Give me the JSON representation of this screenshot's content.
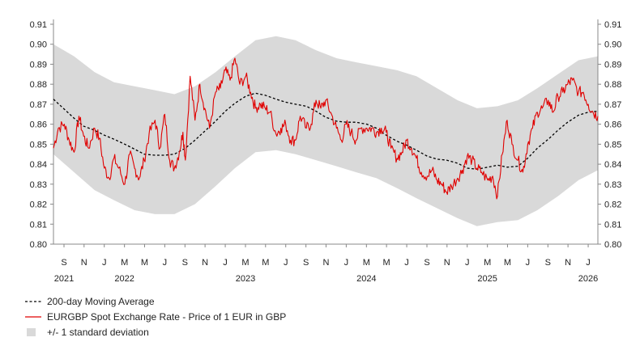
{
  "chart_data": {
    "type": "line",
    "title": "",
    "xlabel": "",
    "ylabel": "",
    "ylim": [
      0.8,
      0.91
    ],
    "y_ticks": [
      0.8,
      0.81,
      0.82,
      0.83,
      0.84,
      0.85,
      0.86,
      0.87,
      0.88,
      0.89,
      0.9,
      0.91
    ],
    "y_tick_labels": [
      "0.80",
      "0.81",
      "0.82",
      "0.83",
      "0.84",
      "0.85",
      "0.86",
      "0.87",
      "0.88",
      "0.89",
      "0.90",
      "0.91"
    ],
    "x_range": [
      2021.58,
      2026.08
    ],
    "month_ticks": [
      {
        "label": "S",
        "x": 2021.667
      },
      {
        "label": "N",
        "x": 2021.833
      },
      {
        "label": "J",
        "x": 2022.0
      },
      {
        "label": "M",
        "x": 2022.167
      },
      {
        "label": "M",
        "x": 2022.333
      },
      {
        "label": "J",
        "x": 2022.5
      },
      {
        "label": "S",
        "x": 2022.667
      },
      {
        "label": "N",
        "x": 2022.833
      },
      {
        "label": "J",
        "x": 2023.0
      },
      {
        "label": "M",
        "x": 2023.167
      },
      {
        "label": "M",
        "x": 2023.333
      },
      {
        "label": "J",
        "x": 2023.5
      },
      {
        "label": "S",
        "x": 2023.667
      },
      {
        "label": "N",
        "x": 2023.833
      },
      {
        "label": "J",
        "x": 2024.0
      },
      {
        "label": "M",
        "x": 2024.167
      },
      {
        "label": "M",
        "x": 2024.333
      },
      {
        "label": "J",
        "x": 2024.5
      },
      {
        "label": "S",
        "x": 2024.667
      },
      {
        "label": "N",
        "x": 2024.833
      },
      {
        "label": "J",
        "x": 2025.0
      },
      {
        "label": "M",
        "x": 2025.167
      },
      {
        "label": "M",
        "x": 2025.333
      },
      {
        "label": "J",
        "x": 2025.5
      },
      {
        "label": "S",
        "x": 2025.667
      },
      {
        "label": "N",
        "x": 2025.833
      },
      {
        "label": "J",
        "x": 2026.0
      }
    ],
    "year_labels": [
      {
        "label": "2021",
        "x": 2021.667
      },
      {
        "label": "2022",
        "x": 2022.167
      },
      {
        "label": "2023",
        "x": 2023.167
      },
      {
        "label": "2024",
        "x": 2024.167
      },
      {
        "label": "2025",
        "x": 2025.167
      },
      {
        "label": "2026",
        "x": 2026.0
      }
    ],
    "series": [
      {
        "name": "+/- 1 standard deviation",
        "kind": "band",
        "color": "#d9d9d9",
        "x": [
          2021.58,
          2021.75,
          2021.92,
          2022.08,
          2022.25,
          2022.42,
          2022.58,
          2022.75,
          2022.92,
          2023.08,
          2023.25,
          2023.42,
          2023.58,
          2023.75,
          2023.92,
          2024.08,
          2024.25,
          2024.42,
          2024.58,
          2024.75,
          2024.92,
          2025.08,
          2025.25,
          2025.42,
          2025.58,
          2025.75,
          2025.92,
          2026.08
        ],
        "upper": [
          0.9,
          0.894,
          0.886,
          0.881,
          0.879,
          0.877,
          0.875,
          0.879,
          0.886,
          0.894,
          0.902,
          0.904,
          0.902,
          0.897,
          0.893,
          0.891,
          0.889,
          0.887,
          0.884,
          0.878,
          0.872,
          0.868,
          0.869,
          0.872,
          0.878,
          0.885,
          0.892,
          0.894
        ],
        "lower": [
          0.845,
          0.836,
          0.827,
          0.822,
          0.817,
          0.815,
          0.815,
          0.82,
          0.829,
          0.838,
          0.846,
          0.847,
          0.845,
          0.842,
          0.839,
          0.836,
          0.833,
          0.828,
          0.823,
          0.818,
          0.813,
          0.809,
          0.811,
          0.812,
          0.817,
          0.824,
          0.832,
          0.837
        ]
      },
      {
        "name": "200-day Moving Average",
        "kind": "dashed",
        "color": "#000000",
        "x": [
          2021.58,
          2021.67,
          2021.75,
          2021.83,
          2021.92,
          2022.0,
          2022.08,
          2022.17,
          2022.25,
          2022.33,
          2022.42,
          2022.5,
          2022.58,
          2022.67,
          2022.75,
          2022.83,
          2022.92,
          2023.0,
          2023.08,
          2023.17,
          2023.25,
          2023.33,
          2023.42,
          2023.5,
          2023.58,
          2023.67,
          2023.75,
          2023.83,
          2023.92,
          2024.0,
          2024.08,
          2024.17,
          2024.25,
          2024.33,
          2024.42,
          2024.5,
          2024.58,
          2024.67,
          2024.75,
          2024.83,
          2024.92,
          2025.0,
          2025.08,
          2025.17,
          2025.25,
          2025.33,
          2025.42,
          2025.5,
          2025.58,
          2025.67,
          2025.75,
          2025.83,
          2025.92,
          2026.0,
          2026.08
        ],
        "values": [
          0.8725,
          0.8675,
          0.863,
          0.859,
          0.857,
          0.8545,
          0.8525,
          0.85,
          0.8475,
          0.845,
          0.8445,
          0.8445,
          0.845,
          0.848,
          0.852,
          0.8565,
          0.8615,
          0.8665,
          0.8705,
          0.874,
          0.8755,
          0.8745,
          0.8725,
          0.871,
          0.87,
          0.869,
          0.8665,
          0.8635,
          0.8615,
          0.861,
          0.861,
          0.86,
          0.858,
          0.8545,
          0.8515,
          0.8495,
          0.847,
          0.844,
          0.8425,
          0.842,
          0.8405,
          0.838,
          0.8375,
          0.8385,
          0.8395,
          0.8385,
          0.839,
          0.843,
          0.848,
          0.8525,
          0.857,
          0.861,
          0.8645,
          0.866,
          0.8665
        ]
      },
      {
        "name": "EURGBP Spot Exchange Rate - Price of 1 EUR in GBP",
        "kind": "solid",
        "color": "#e00000",
        "x": [
          2021.58,
          2021.62,
          2021.67,
          2021.71,
          2021.75,
          2021.79,
          2021.83,
          2021.87,
          2021.92,
          2021.96,
          2022.0,
          2022.04,
          2022.08,
          2022.12,
          2022.17,
          2022.21,
          2022.25,
          2022.29,
          2022.33,
          2022.37,
          2022.42,
          2022.46,
          2022.5,
          2022.54,
          2022.58,
          2022.62,
          2022.65,
          2022.67,
          2022.71,
          2022.75,
          2022.79,
          2022.83,
          2022.87,
          2022.92,
          2022.96,
          2023.0,
          2023.04,
          2023.08,
          2023.12,
          2023.17,
          2023.21,
          2023.25,
          2023.29,
          2023.33,
          2023.37,
          2023.42,
          2023.46,
          2023.5,
          2023.54,
          2023.58,
          2023.62,
          2023.67,
          2023.71,
          2023.75,
          2023.79,
          2023.83,
          2023.87,
          2023.92,
          2023.96,
          2024.0,
          2024.04,
          2024.08,
          2024.12,
          2024.17,
          2024.21,
          2024.25,
          2024.29,
          2024.33,
          2024.37,
          2024.42,
          2024.46,
          2024.5,
          2024.54,
          2024.58,
          2024.62,
          2024.67,
          2024.71,
          2024.75,
          2024.79,
          2024.83,
          2024.87,
          2024.92,
          2024.96,
          2025.0,
          2025.04,
          2025.08,
          2025.12,
          2025.17,
          2025.21,
          2025.25,
          2025.29,
          2025.33,
          2025.37,
          2025.42,
          2025.46,
          2025.5,
          2025.54,
          2025.58,
          2025.62,
          2025.67,
          2025.71,
          2025.75,
          2025.79,
          2025.83,
          2025.87,
          2025.92,
          2025.96,
          2026.0,
          2026.04,
          2026.08
        ],
        "values": [
          0.848,
          0.858,
          0.86,
          0.852,
          0.846,
          0.864,
          0.854,
          0.848,
          0.858,
          0.853,
          0.838,
          0.833,
          0.843,
          0.838,
          0.83,
          0.845,
          0.838,
          0.833,
          0.842,
          0.855,
          0.862,
          0.848,
          0.865,
          0.842,
          0.838,
          0.846,
          0.856,
          0.842,
          0.884,
          0.862,
          0.88,
          0.868,
          0.858,
          0.876,
          0.878,
          0.887,
          0.882,
          0.893,
          0.88,
          0.884,
          0.876,
          0.868,
          0.87,
          0.868,
          0.866,
          0.855,
          0.858,
          0.86,
          0.852,
          0.852,
          0.864,
          0.858,
          0.86,
          0.872,
          0.868,
          0.872,
          0.866,
          0.858,
          0.852,
          0.86,
          0.856,
          0.852,
          0.858,
          0.858,
          0.858,
          0.856,
          0.858,
          0.856,
          0.848,
          0.843,
          0.846,
          0.852,
          0.848,
          0.843,
          0.836,
          0.834,
          0.837,
          0.832,
          0.83,
          0.826,
          0.829,
          0.833,
          0.837,
          0.844,
          0.842,
          0.838,
          0.836,
          0.832,
          0.834,
          0.824,
          0.845,
          0.862,
          0.85,
          0.842,
          0.836,
          0.85,
          0.858,
          0.866,
          0.868,
          0.872,
          0.866,
          0.874,
          0.876,
          0.88,
          0.882,
          0.876,
          0.876,
          0.87,
          0.866,
          0.864
        ]
      }
    ],
    "legend": [
      {
        "label": "200-day Moving Average",
        "style": "dashed"
      },
      {
        "label": "EURGBP Spot Exchange Rate - Price of 1 EUR in GBP",
        "style": "solid-red"
      },
      {
        "label": "+/- 1 standard deviation",
        "style": "band"
      }
    ]
  }
}
